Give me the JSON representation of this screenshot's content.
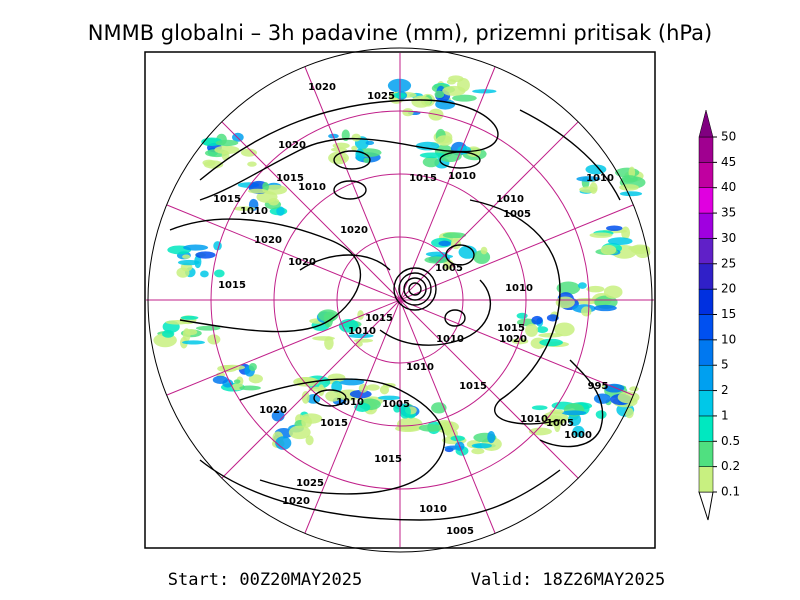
{
  "title": "NMMB globalni – 3h padavine (mm), prizemni pritisak (hPa)",
  "start": "Start: 00Z20MAY2025",
  "valid": "Valid: 18Z26MAY2025",
  "colorbar": {
    "levels": [
      0.1,
      0.2,
      0.5,
      1,
      2,
      5,
      10,
      15,
      20,
      25,
      30,
      35,
      40,
      45,
      50
    ],
    "colors": [
      "#c8f080",
      "#50e080",
      "#00e8c0",
      "#00c8e8",
      "#00a0f0",
      "#0078f0",
      "#0050f0",
      "#0030e0",
      "#3020c8",
      "#6020c8",
      "#a000e0",
      "#e000e0",
      "#c000a0",
      "#a00090",
      "#800080"
    ]
  },
  "isobar_labels": [
    1020,
    1025,
    1020,
    1015,
    1010,
    1015,
    1010,
    1010,
    1015,
    1010,
    1010,
    1005,
    1020,
    1020,
    1020,
    1005,
    1015,
    1010,
    1015,
    1010,
    1010,
    1015,
    1020,
    1010,
    995,
    1015,
    1010,
    1005,
    1020,
    1015,
    1010,
    1005,
    1000,
    1015,
    1025,
    1020,
    1010,
    1005
  ]
}
